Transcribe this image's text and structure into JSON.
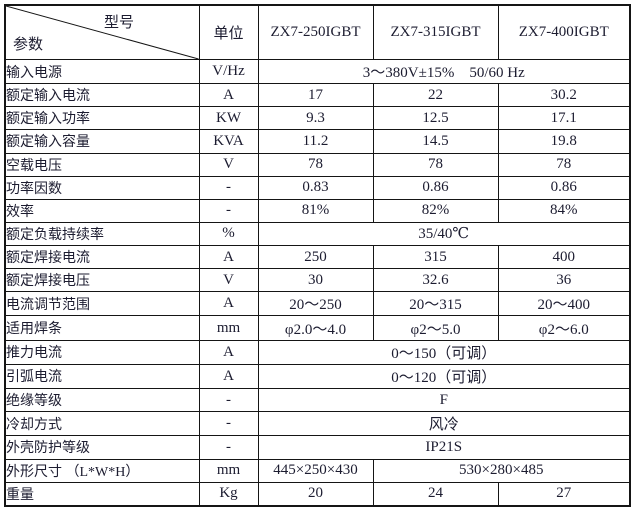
{
  "colors": {
    "text": "#1c1c30",
    "border": "#151515",
    "background": "#ffffff"
  },
  "table": {
    "corner": {
      "top_right": "型号",
      "bottom_left": "参数"
    },
    "columns": {
      "unit": "单位",
      "models": [
        "ZX7-250IGBT",
        "ZX7-315IGBT",
        "ZX7-400IGBT"
      ]
    },
    "rows": [
      {
        "label": "输入电源",
        "unit": "V/Hz",
        "cells": [
          {
            "text": "3～380V±15%　50/60 Hz",
            "span": 3
          }
        ]
      },
      {
        "label": "额定输入电流",
        "unit": "A",
        "cells": [
          {
            "text": "17",
            "span": 1
          },
          {
            "text": "22",
            "span": 1
          },
          {
            "text": "30.2",
            "span": 1
          }
        ]
      },
      {
        "label": "额定输入功率",
        "unit": "KW",
        "cells": [
          {
            "text": "9.3",
            "span": 1
          },
          {
            "text": "12.5",
            "span": 1
          },
          {
            "text": "17.1",
            "span": 1
          }
        ]
      },
      {
        "label": "额定输入容量",
        "unit": "KVA",
        "cells": [
          {
            "text": "11.2",
            "span": 1
          },
          {
            "text": "14.5",
            "span": 1
          },
          {
            "text": "19.8",
            "span": 1
          }
        ]
      },
      {
        "label": "空载电压",
        "unit": "V",
        "cells": [
          {
            "text": "78",
            "span": 1
          },
          {
            "text": "78",
            "span": 1
          },
          {
            "text": "78",
            "span": 1
          }
        ]
      },
      {
        "label": "功率因数",
        "unit": "-",
        "cells": [
          {
            "text": "0.83",
            "span": 1
          },
          {
            "text": "0.86",
            "span": 1
          },
          {
            "text": "0.86",
            "span": 1
          }
        ]
      },
      {
        "label": "效率",
        "unit": "-",
        "cells": [
          {
            "text": "81%",
            "span": 1
          },
          {
            "text": "82%",
            "span": 1
          },
          {
            "text": "84%",
            "span": 1
          }
        ]
      },
      {
        "label": "额定负载持续率",
        "unit": "%",
        "cells": [
          {
            "text": "35/40℃",
            "span": 3
          }
        ]
      },
      {
        "label": "额定焊接电流",
        "unit": "A",
        "cells": [
          {
            "text": "250",
            "span": 1
          },
          {
            "text": "315",
            "span": 1
          },
          {
            "text": "400",
            "span": 1
          }
        ]
      },
      {
        "label": "额定焊接电压",
        "unit": "V",
        "cells": [
          {
            "text": "30",
            "span": 1
          },
          {
            "text": "32.6",
            "span": 1
          },
          {
            "text": "36",
            "span": 1
          }
        ]
      },
      {
        "label": "电流调节范围",
        "unit": "A",
        "cells": [
          {
            "text": "20～250",
            "span": 1
          },
          {
            "text": "20～315",
            "span": 1
          },
          {
            "text": "20～400",
            "span": 1
          }
        ]
      },
      {
        "label": "适用焊条",
        "unit": "mm",
        "cells": [
          {
            "text": "φ2.0～4.0",
            "span": 1
          },
          {
            "text": "φ2～5.0",
            "span": 1
          },
          {
            "text": "φ2～6.0",
            "span": 1
          }
        ]
      },
      {
        "label": "推力电流",
        "unit": "A",
        "cells": [
          {
            "text": "0～150（可调）",
            "span": 3
          }
        ]
      },
      {
        "label": "引弧电流",
        "unit": "A",
        "cells": [
          {
            "text": "0～120（可调）",
            "span": 3
          }
        ]
      },
      {
        "label": "绝缘等级",
        "unit": "-",
        "cells": [
          {
            "text": "F",
            "span": 3
          }
        ]
      },
      {
        "label": "冷却方式",
        "unit": "-",
        "cells": [
          {
            "text": "风冷",
            "span": 3
          }
        ]
      },
      {
        "label": "外壳防护等级",
        "unit": "-",
        "cells": [
          {
            "text": "IP21S",
            "span": 3
          }
        ]
      },
      {
        "label": "外形尺寸 （L*W*H）",
        "unit": "mm",
        "cells": [
          {
            "text": "445×250×430",
            "span": 1
          },
          {
            "text": "530×280×485",
            "span": 2
          }
        ]
      },
      {
        "label": "重量",
        "unit": "Kg",
        "cells": [
          {
            "text": "20",
            "span": 1
          },
          {
            "text": "24",
            "span": 1
          },
          {
            "text": "27",
            "span": 1
          }
        ]
      }
    ]
  }
}
